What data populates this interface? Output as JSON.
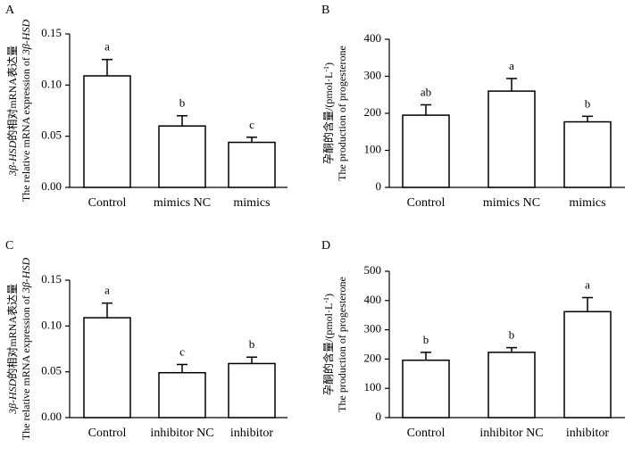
{
  "chart_data": [
    {
      "panel": "A",
      "type": "bar",
      "categories": [
        "Control",
        "mimics NC",
        "mimics"
      ],
      "values": [
        0.109,
        0.06,
        0.044
      ],
      "errors": [
        0.016,
        0.01,
        0.005
      ],
      "significance": [
        "a",
        "b",
        "c"
      ],
      "ylim": [
        0,
        0.15
      ],
      "yticks": [
        0.0,
        0.05,
        0.1,
        0.15
      ],
      "ytick_labels": [
        "0.00",
        "0.05",
        "0.10",
        "0.15"
      ],
      "ylabel": {
        "line1": [
          {
            "text": "3β-HSD",
            "italic": true
          },
          {
            "text": "的相对mRNA表达量",
            "italic": false
          }
        ],
        "line2": [
          {
            "text": "The relative mRNA expression of ",
            "italic": false
          },
          {
            "text": "3β-HSD",
            "italic": true
          }
        ]
      },
      "xlabel": "",
      "title": ""
    },
    {
      "panel": "B",
      "type": "bar",
      "categories": [
        "Control",
        "mimics NC",
        "mimics"
      ],
      "values": [
        195,
        260,
        177
      ],
      "errors": [
        28,
        34,
        15
      ],
      "significance": [
        "ab",
        "a",
        "b"
      ],
      "ylim": [
        0,
        400
      ],
      "yticks": [
        0,
        100,
        200,
        300,
        400
      ],
      "ytick_labels": [
        "0",
        "100",
        "200",
        "300",
        "400"
      ],
      "ylabel": {
        "line1": [
          {
            "text": "孕酮的含量/(pmol·L",
            "italic": false
          },
          {
            "text": "-1",
            "italic": false,
            "sup": true
          },
          {
            "text": ")",
            "italic": false
          }
        ],
        "line2": [
          {
            "text": "The production of progesterone",
            "italic": false
          }
        ]
      },
      "xlabel": "",
      "title": ""
    },
    {
      "panel": "C",
      "type": "bar",
      "categories": [
        "Control",
        "inhibitor NC",
        "inhibitor"
      ],
      "values": [
        0.109,
        0.049,
        0.059
      ],
      "errors": [
        0.016,
        0.009,
        0.007
      ],
      "significance": [
        "a",
        "c",
        "b"
      ],
      "ylim": [
        0,
        0.15
      ],
      "yticks": [
        0.0,
        0.05,
        0.1,
        0.15
      ],
      "ytick_labels": [
        "0.00",
        "0.05",
        "0.10",
        "0.15"
      ],
      "ylabel": {
        "line1": [
          {
            "text": "3β-HSD",
            "italic": true
          },
          {
            "text": "的相对mRNA表达量",
            "italic": false
          }
        ],
        "line2": [
          {
            "text": "The relative mRNA expression of ",
            "italic": false
          },
          {
            "text": "3β-HSD",
            "italic": true
          }
        ]
      },
      "xlabel": "",
      "title": ""
    },
    {
      "panel": "D",
      "type": "bar",
      "categories": [
        "Control",
        "inhibitor NC",
        "inhibitor"
      ],
      "values": [
        196,
        223,
        362
      ],
      "errors": [
        27,
        16,
        48
      ],
      "significance": [
        "b",
        "b",
        "a"
      ],
      "ylim": [
        0,
        500
      ],
      "yticks": [
        0,
        100,
        200,
        300,
        400,
        500
      ],
      "ytick_labels": [
        "0",
        "100",
        "200",
        "300",
        "400",
        "500"
      ],
      "ylabel": {
        "line1": [
          {
            "text": "孕酮的含量/(pmol·L",
            "italic": false
          },
          {
            "text": "-1",
            "italic": false,
            "sup": true
          },
          {
            "text": ")",
            "italic": false
          }
        ],
        "line2": [
          {
            "text": "The production of progesterone",
            "italic": false
          }
        ]
      },
      "xlabel": "",
      "title": ""
    }
  ]
}
